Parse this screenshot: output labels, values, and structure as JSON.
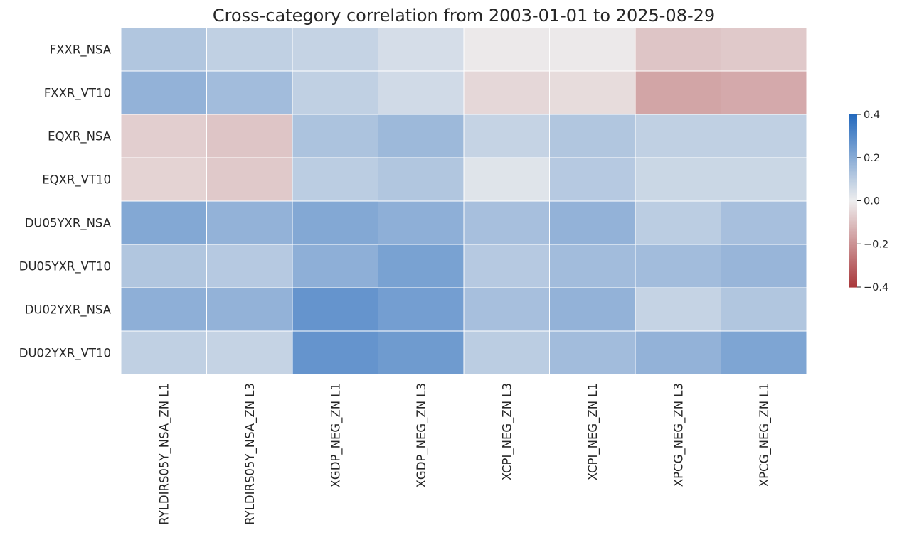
{
  "chart_data": {
    "type": "heatmap",
    "title": "Cross-category correlation from 2003-01-01 to 2025-08-29",
    "row_labels": [
      "FXXR_NSA",
      "FXXR_VT10",
      "EQXR_NSA",
      "EQXR_VT10",
      "DU05YXR_NSA",
      "DU05YXR_VT10",
      "DU02YXR_NSA",
      "DU02YXR_VT10"
    ],
    "col_labels": [
      "RYLDIRS05Y_NSA_ZN L1",
      "RYLDIRS05Y_NSA_ZN L3",
      "XGDP_NEG_ZN L1",
      "XGDP_NEG_ZN L3",
      "XCPI_NEG_ZN L3",
      "XCPI_NEG_ZN L1",
      "XPCG_NEG_ZN L3",
      "XPCG_NEG_ZN L1"
    ],
    "values": [
      [
        0.12,
        0.09,
        0.08,
        0.05,
        -0.01,
        -0.01,
        -0.09,
        -0.08
      ],
      [
        0.18,
        0.15,
        0.09,
        0.06,
        -0.05,
        -0.04,
        -0.16,
        -0.15
      ],
      [
        -0.07,
        -0.09,
        0.13,
        0.16,
        0.08,
        0.12,
        0.09,
        0.09
      ],
      [
        -0.06,
        -0.08,
        0.1,
        0.12,
        0.03,
        0.11,
        0.07,
        0.07
      ],
      [
        0.21,
        0.18,
        0.21,
        0.19,
        0.14,
        0.18,
        0.1,
        0.14
      ],
      [
        0.12,
        0.11,
        0.19,
        0.23,
        0.11,
        0.15,
        0.15,
        0.17
      ],
      [
        0.19,
        0.18,
        0.27,
        0.24,
        0.14,
        0.18,
        0.08,
        0.12
      ],
      [
        0.09,
        0.08,
        0.27,
        0.25,
        0.1,
        0.15,
        0.18,
        0.22
      ]
    ],
    "vmin": -0.4,
    "vmax": 0.4,
    "colormap": "vlag_r (blue positive, red negative)",
    "colorbar_ticks": [
      "0.4",
      "0.2",
      "0.0",
      "−0.2",
      "−0.4"
    ],
    "colorbar_tick_values": [
      0.4,
      0.2,
      0.0,
      -0.2,
      -0.4
    ],
    "colors": {
      "positive": "#2369bd",
      "neutral": "#eeeeee",
      "negative": "#a9373b",
      "text": "#262626",
      "cell_border": "#ffffff"
    }
  }
}
